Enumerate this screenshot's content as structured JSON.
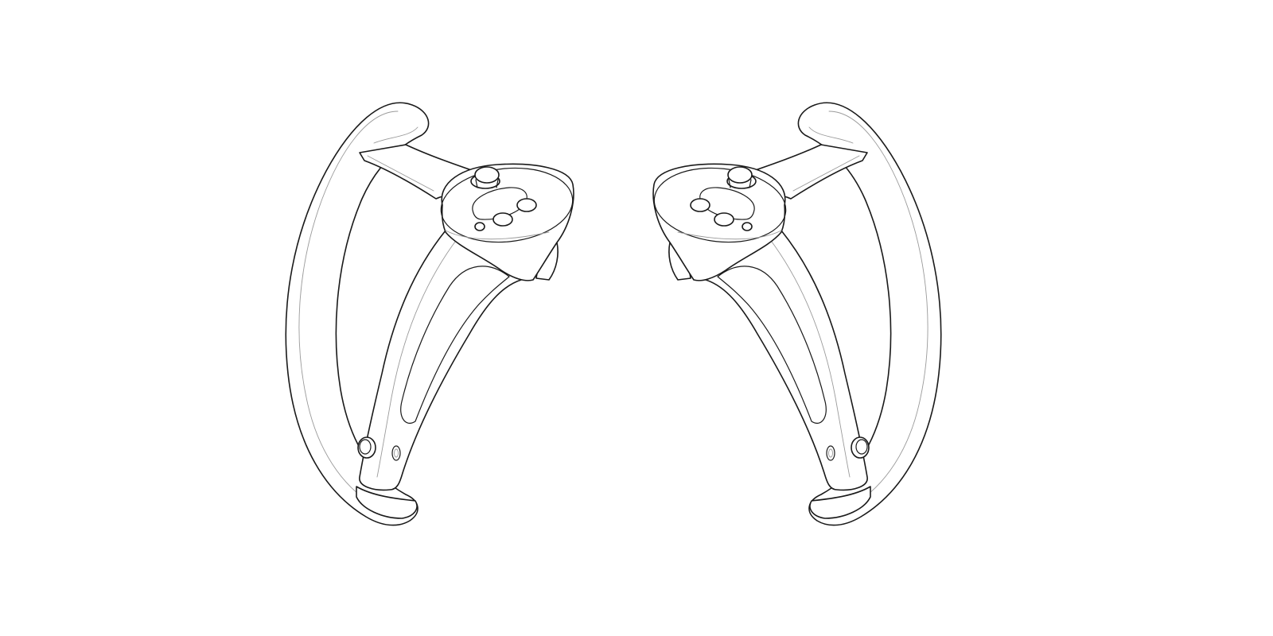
{
  "scene": {
    "background": "#ffffff",
    "line_color": "#1a1a1a",
    "subject": "vr-controller-pair-line-drawing",
    "items": [
      {
        "id": "left-controller"
      },
      {
        "id": "right-controller"
      }
    ]
  }
}
